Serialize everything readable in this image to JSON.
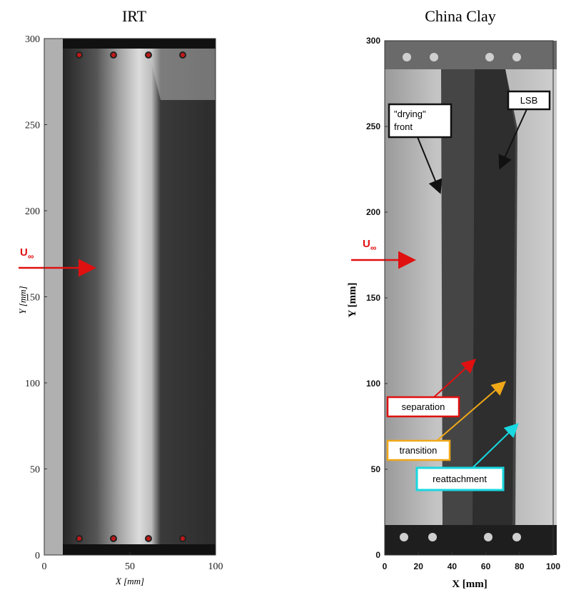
{
  "panels": [
    {
      "title": "IRT",
      "xlabel": "X [mm]",
      "ylabel": "Y [mm]",
      "xlim": [
        0,
        100
      ],
      "ylim": [
        0,
        300
      ],
      "xticks": [
        0,
        50,
        100
      ],
      "yticks": [
        0,
        50,
        100,
        150,
        200,
        250,
        300
      ],
      "flow_label": {
        "main": "U",
        "sub": "∞"
      }
    },
    {
      "title": "China Clay",
      "xlabel": "X [mm]",
      "ylabel": "Y [mm]",
      "xlim": [
        0,
        100
      ],
      "ylim": [
        0,
        300
      ],
      "xticks": [
        0,
        20,
        40,
        60,
        80,
        100
      ],
      "yticks": [
        0,
        50,
        100,
        150,
        200,
        250,
        300
      ],
      "flow_label": {
        "main": "U",
        "sub": "∞"
      },
      "annotations": [
        {
          "lines": [
            "\"drying\"",
            "front"
          ]
        },
        {
          "text": "LSB"
        },
        {
          "text": "separation"
        },
        {
          "text": "transition"
        },
        {
          "text": "reattachment"
        }
      ]
    }
  ]
}
